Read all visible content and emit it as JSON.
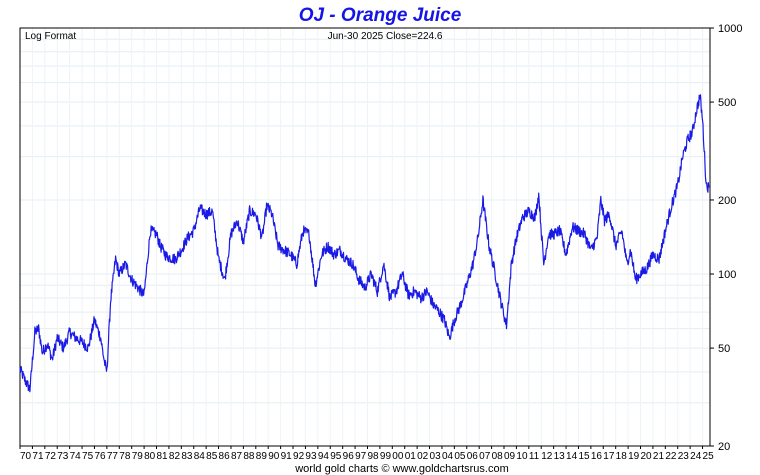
{
  "chart_data": {
    "type": "line",
    "title": "OJ  -  Orange Juice",
    "scale_label": "Log Format",
    "last_quote": "Jun-30  2025   Close=224.6",
    "footer": "world gold charts © www.goldchartsrus.com",
    "y_scale": "log",
    "ylim": [
      20,
      1000
    ],
    "y_ticks": [
      "20",
      "50",
      "100",
      "200",
      "500",
      "1000"
    ],
    "x_ticks": [
      "70",
      "71",
      "72",
      "73",
      "74",
      "75",
      "76",
      "77",
      "78",
      "79",
      "80",
      "81",
      "82",
      "83",
      "84",
      "85",
      "86",
      "87",
      "88",
      "89",
      "90",
      "91",
      "92",
      "93",
      "94",
      "95",
      "96",
      "97",
      "98",
      "99",
      "00",
      "01",
      "02",
      "03",
      "04",
      "05",
      "06",
      "07",
      "08",
      "09",
      "10",
      "11",
      "12",
      "13",
      "14",
      "15",
      "16",
      "17",
      "18",
      "19",
      "20",
      "21",
      "22",
      "23",
      "24",
      "25"
    ],
    "grid": true,
    "series_color": "#1a1ae6",
    "series": [
      {
        "x": [
          1970.0,
          1970.4,
          1970.8,
          1971.2,
          1971.5,
          1971.8,
          1972.2,
          1972.6,
          1973.0,
          1973.5,
          1974.0,
          1974.5,
          1975.0,
          1975.5,
          1976.0,
          1976.5,
          1976.8,
          1977.0,
          1977.3,
          1977.7,
          1978.0,
          1978.5,
          1979.0,
          1979.5,
          1980.0,
          1980.5,
          1981.0,
          1981.3,
          1981.8,
          1982.5,
          1983.0,
          1983.5,
          1984.0,
          1984.5,
          1985.0,
          1985.5,
          1986.0,
          1986.5,
          1987.0,
          1987.5,
          1988.0,
          1988.5,
          1989.0,
          1989.5,
          1989.9,
          1990.3,
          1990.8,
          1991.3,
          1991.8,
          1992.3,
          1992.8,
          1993.3,
          1993.8,
          1994.3,
          1994.8,
          1995.3,
          1995.8,
          1996.3,
          1996.8,
          1997.3,
          1997.8,
          1998.3,
          1998.8,
          1999.3,
          1999.8,
          2000.3,
          2000.8,
          2001.3,
          2001.8,
          2002.3,
          2002.8,
          2003.3,
          2003.8,
          2004.2,
          2004.6,
          2005.0,
          2005.5,
          2006.0,
          2006.5,
          2006.9,
          2007.3,
          2007.8,
          2008.3,
          2008.8,
          2009.2,
          2009.6,
          2010.0,
          2010.5,
          2011.0,
          2011.5,
          2011.8,
          2012.2,
          2012.6,
          2013.0,
          2013.5,
          2014.0,
          2014.5,
          2015.0,
          2015.5,
          2016.0,
          2016.5,
          2016.8,
          2017.1,
          2017.5,
          2018.0,
          2018.5,
          2018.9,
          2019.2,
          2019.6,
          2020.0,
          2020.5,
          2021.0,
          2021.5,
          2022.0,
          2022.5,
          2023.0,
          2023.4,
          2023.8,
          2024.2,
          2024.5,
          2024.8,
          2025.0,
          2025.3,
          2025.5
        ],
        "y": [
          41,
          37,
          34,
          58,
          60,
          48,
          52,
          45,
          55,
          50,
          58,
          55,
          53,
          50,
          65,
          55,
          44,
          40,
          78,
          115,
          100,
          110,
          95,
          88,
          82,
          150,
          145,
          130,
          118,
          115,
          125,
          140,
          150,
          185,
          175,
          180,
          115,
          95,
          145,
          165,
          135,
          180,
          175,
          140,
          190,
          175,
          130,
          125,
          120,
          110,
          150,
          145,
          90,
          120,
          130,
          120,
          125,
          115,
          110,
          95,
          88,
          100,
          85,
          110,
          80,
          85,
          100,
          82,
          85,
          80,
          85,
          75,
          70,
          65,
          55,
          65,
          75,
          90,
          110,
          140,
          200,
          130,
          100,
          75,
          62,
          110,
          140,
          170,
          180,
          170,
          210,
          110,
          145,
          145,
          150,
          120,
          155,
          150,
          145,
          125,
          140,
          200,
          165,
          175,
          130,
          150,
          110,
          125,
          95,
          100,
          105,
          120,
          115,
          150,
          190,
          230,
          300,
          350,
          380,
          460,
          530,
          420,
          230,
          224.6
        ]
      }
    ]
  }
}
